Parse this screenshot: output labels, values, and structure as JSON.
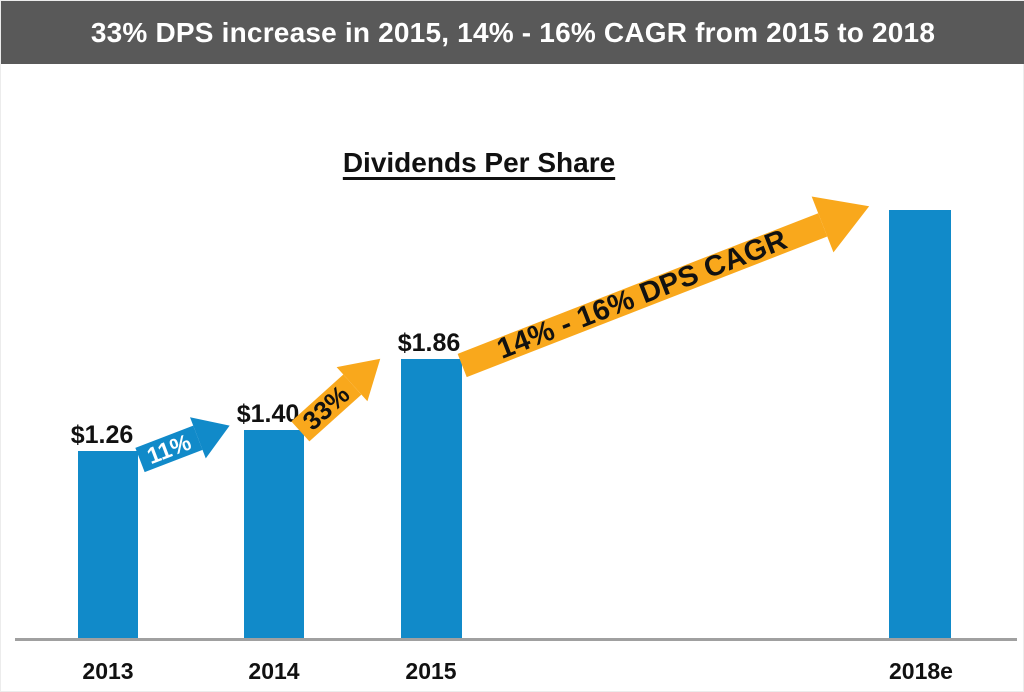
{
  "banner": {
    "title": "33% DPS increase in 2015, 14% - 16% CAGR from 2015 to 2018"
  },
  "colors": {
    "banner_gray": "#595959",
    "bar_blue": "#118AC9",
    "arrow_orange": "#F9A81C",
    "axis_gray": "#A0A0A0",
    "text_black": "#111111",
    "text_white": "#FFFFFF"
  },
  "chart_data": {
    "type": "bar",
    "title": "Dividends Per Share",
    "categories": [
      "2013",
      "2014",
      "2015",
      "2018e"
    ],
    "values": [
      1.26,
      1.4,
      1.86,
      2.9
    ],
    "value_labels": [
      "$1.26",
      "$1.40",
      "$1.86",
      ""
    ],
    "ylim": [
      0,
      3.0
    ],
    "grid": false,
    "legend": false,
    "bar_color": "#118AC9",
    "annotations": [
      {
        "type": "block-arrow",
        "text": "11%",
        "from": "2013",
        "to": "2014",
        "color": "#118AC9",
        "text_color": "#FFFFFF"
      },
      {
        "type": "block-arrow",
        "text": "33%",
        "from": "2014",
        "to": "2015",
        "color": "#F9A81C",
        "text_color": "#000000"
      },
      {
        "type": "block-arrow",
        "text": "14% - 16% DPS CAGR",
        "from": "2015",
        "to": "2018e",
        "color": "#F9A81C",
        "text_color": "#000000"
      }
    ]
  }
}
